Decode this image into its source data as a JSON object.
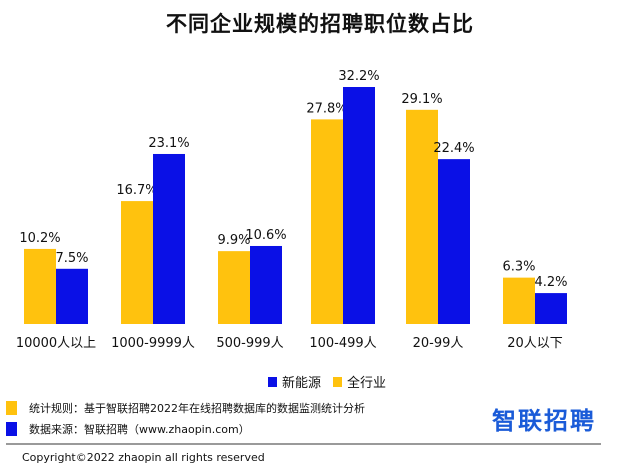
{
  "chart_data": {
    "type": "bar",
    "title": "不同企业规模的招聘职位数占比",
    "categories": [
      "10000人以上",
      "1000-9999人",
      "500-999人",
      "100-499人",
      "20-99人",
      "20人以下"
    ],
    "series": [
      {
        "name": "全行业",
        "color": "#ffc20e",
        "values": [
          10.2,
          16.7,
          9.9,
          27.8,
          29.1,
          6.3
        ],
        "labels": [
          "10.2%",
          "16.7%",
          "9.9%",
          "27.8%",
          "29.1%",
          "6.3%"
        ]
      },
      {
        "name": "新能源",
        "color": "#0a10e6",
        "values": [
          7.5,
          23.1,
          10.6,
          32.2,
          22.4,
          4.2
        ],
        "labels": [
          "7.5%",
          "23.1%",
          "10.6%",
          "32.2%",
          "22.4%",
          "4.2%"
        ]
      }
    ],
    "ylim": [
      0,
      32.2
    ],
    "grid": false,
    "legend_position": "bottom-right",
    "legend_order": [
      "新能源",
      "全行业"
    ]
  },
  "notes": [
    {
      "color": "#ffc20e",
      "text": "统计规则：基于智联招聘2022年在线招聘数据库的数据监测统计分析"
    },
    {
      "color": "#0a10e6",
      "text": "数据来源：智联招聘（www.zhaopin.com）"
    }
  ],
  "logo_text": "智联招聘",
  "copyright": "Copyright©2022 zhaopin all rights reserved"
}
